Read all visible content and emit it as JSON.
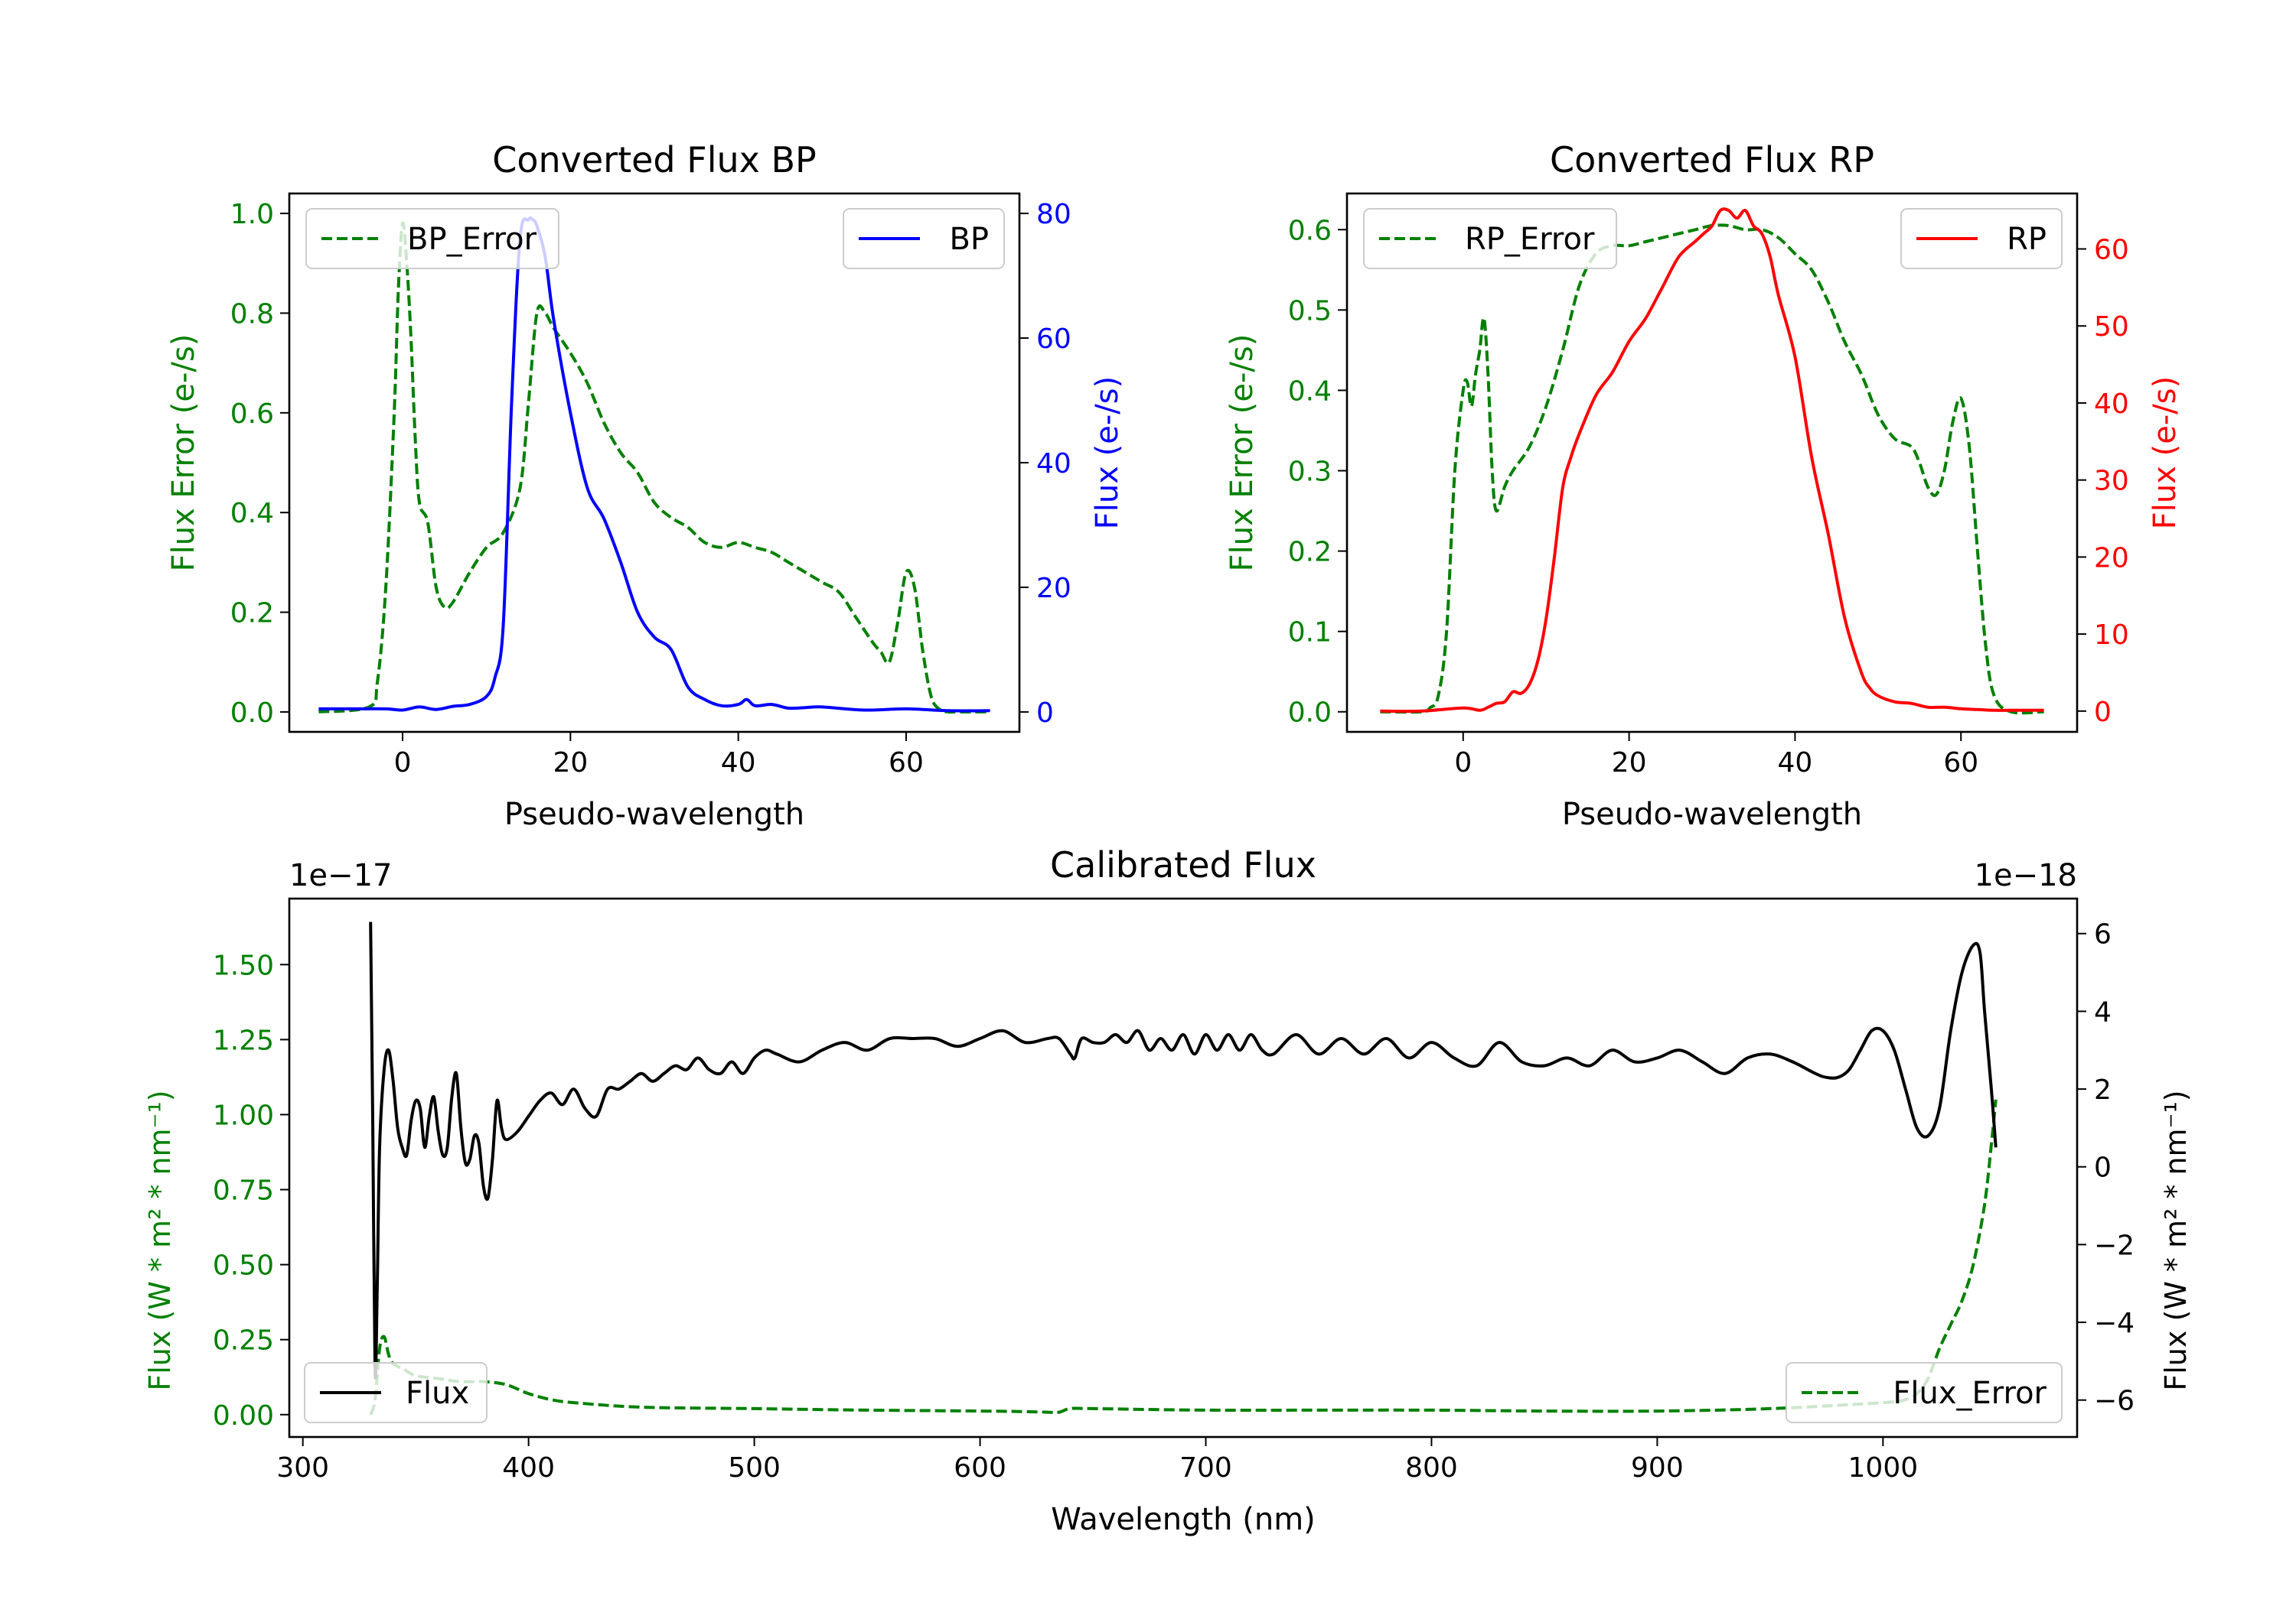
{
  "chart_data": [
    {
      "type": "line",
      "title": "Converted Flux BP",
      "xlabel": "Pseudo-wavelength",
      "ylabel_left": "Flux Error (e-/s)",
      "ylabel_right": "Flux (e-/s)",
      "xlim": [
        -13.5,
        73.5
      ],
      "ylim_left": [
        -0.04,
        1.04
      ],
      "ylim_right": [
        -3.2,
        83.2
      ],
      "xticks": [
        0,
        20,
        40,
        60
      ],
      "xtick_labels": [
        "0",
        "20",
        "40",
        "60"
      ],
      "yticks_left": [
        0.0,
        0.2,
        0.4,
        0.6,
        0.8,
        1.0
      ],
      "ytick_labels_left": [
        "0.0",
        "0.2",
        "0.4",
        "0.6",
        "0.8",
        "1.0"
      ],
      "yticks_right": [
        0,
        20,
        40,
        60,
        80
      ],
      "ytick_labels_right": [
        "0",
        "20",
        "40",
        "60",
        "80"
      ],
      "left_color": "#008000",
      "right_color": "#0000ff",
      "series": [
        {
          "name": "BP_Error",
          "axis": "left",
          "style": "dashed",
          "color": "#008000",
          "legend": "upper left",
          "x": [
            -10,
            -4,
            -3,
            -2,
            -1,
            -0.5,
            0,
            0.5,
            1,
            1.5,
            2,
            3,
            4,
            5,
            6,
            8,
            10,
            12,
            14,
            15,
            16,
            17,
            18,
            20,
            22,
            24,
            26,
            28,
            30,
            32,
            34,
            36,
            38,
            40,
            42,
            44,
            46,
            48,
            50,
            52,
            54,
            56,
            57,
            58,
            59,
            60,
            61,
            62,
            63,
            64,
            65,
            66,
            68,
            70
          ],
          "y": [
            0.0,
            0.01,
            0.06,
            0.25,
            0.6,
            0.85,
            0.98,
            0.9,
            0.75,
            0.55,
            0.42,
            0.38,
            0.25,
            0.21,
            0.22,
            0.28,
            0.33,
            0.36,
            0.45,
            0.62,
            0.8,
            0.8,
            0.77,
            0.72,
            0.66,
            0.58,
            0.52,
            0.48,
            0.42,
            0.39,
            0.37,
            0.34,
            0.33,
            0.34,
            0.33,
            0.32,
            0.3,
            0.28,
            0.26,
            0.24,
            0.19,
            0.14,
            0.12,
            0.1,
            0.18,
            0.28,
            0.25,
            0.12,
            0.03,
            0.005,
            0.0,
            0.0,
            0.0,
            0.0
          ]
        },
        {
          "name": "BP",
          "axis": "right",
          "style": "solid",
          "color": "#0000ff",
          "legend": "upper right",
          "x": [
            -10,
            -6,
            -2,
            0,
            2,
            4,
            6,
            8,
            10,
            11,
            12,
            13,
            14,
            15,
            15.5,
            16,
            17,
            18,
            20,
            22,
            24,
            26,
            28,
            30,
            32,
            34,
            36,
            38,
            40,
            41,
            42,
            44,
            46,
            48,
            50,
            55,
            60,
            65,
            70
          ],
          "y": [
            0.5,
            0.5,
            0.5,
            0.3,
            0.8,
            0.4,
            0.9,
            1.2,
            2.5,
            5.5,
            14,
            50,
            76,
            79,
            79,
            78,
            73,
            63,
            48,
            36,
            31,
            24,
            16,
            12,
            10,
            4,
            2,
            1,
            1.2,
            2.0,
            1.0,
            1.2,
            0.6,
            0.7,
            0.8,
            0.3,
            0.5,
            0.2,
            0.2
          ]
        }
      ]
    },
    {
      "type": "line",
      "title": "Converted Flux RP",
      "xlabel": "Pseudo-wavelength",
      "ylabel_left": "Flux Error (e-/s)",
      "ylabel_right": "Flux (e-/s)",
      "xlim": [
        -14,
        74
      ],
      "ylim_left": [
        -0.025,
        0.645
      ],
      "ylim_right": [
        -2.7,
        67.2
      ],
      "xticks": [
        0,
        20,
        40,
        60
      ],
      "xtick_labels": [
        "0",
        "20",
        "40",
        "60"
      ],
      "yticks_left": [
        0.0,
        0.1,
        0.2,
        0.3,
        0.4,
        0.5,
        0.6
      ],
      "ytick_labels_left": [
        "0.0",
        "0.1",
        "0.2",
        "0.3",
        "0.4",
        "0.5",
        "0.6"
      ],
      "yticks_right": [
        0,
        10,
        20,
        30,
        40,
        50,
        60
      ],
      "ytick_labels_right": [
        "0",
        "10",
        "20",
        "30",
        "40",
        "50",
        "60"
      ],
      "left_color": "#008000",
      "right_color": "#ff0000",
      "series": [
        {
          "name": "RP_Error",
          "axis": "left",
          "style": "dashed",
          "color": "#008000",
          "legend": "upper left",
          "x": [
            -10,
            -5,
            -4,
            -3,
            -2,
            -1,
            0,
            0.5,
            1,
            1.5,
            2,
            2.5,
            3,
            3.5,
            4,
            5,
            6,
            8,
            10,
            12,
            14,
            16,
            18,
            20,
            22,
            24,
            26,
            28,
            30,
            32,
            34,
            36,
            38,
            40,
            42,
            44,
            46,
            48,
            50,
            52,
            54,
            55,
            56,
            57,
            58,
            59,
            60,
            61,
            62,
            63,
            64,
            66,
            70
          ],
          "y": [
            0.0,
            0.0,
            0.005,
            0.02,
            0.1,
            0.3,
            0.4,
            0.41,
            0.38,
            0.42,
            0.45,
            0.49,
            0.42,
            0.3,
            0.25,
            0.28,
            0.3,
            0.33,
            0.38,
            0.45,
            0.53,
            0.57,
            0.58,
            0.58,
            0.585,
            0.59,
            0.595,
            0.6,
            0.605,
            0.605,
            0.6,
            0.6,
            0.59,
            0.57,
            0.55,
            0.51,
            0.46,
            0.42,
            0.37,
            0.34,
            0.33,
            0.31,
            0.28,
            0.27,
            0.3,
            0.36,
            0.39,
            0.33,
            0.2,
            0.08,
            0.02,
            0.0,
            0.0
          ]
        },
        {
          "name": "RP",
          "axis": "right",
          "style": "solid",
          "color": "#ff0000",
          "legend": "upper right",
          "x": [
            -10,
            -5,
            0,
            2,
            3,
            4,
            5,
            6,
            7,
            8,
            9,
            10,
            11,
            12,
            13,
            14,
            16,
            18,
            20,
            22,
            24,
            26,
            28,
            29,
            30,
            31,
            32,
            33,
            34,
            35,
            36,
            37,
            38,
            40,
            42,
            44,
            46,
            48,
            49,
            50,
            52,
            54,
            56,
            58,
            60,
            62,
            64,
            66,
            70
          ],
          "y": [
            0,
            0,
            0.4,
            0.1,
            0.5,
            1.0,
            1.2,
            2.5,
            2.3,
            3.5,
            6.5,
            12,
            20,
            29,
            33,
            36,
            41,
            44,
            48,
            51,
            55,
            59,
            61,
            62,
            63,
            65,
            65,
            64,
            65,
            63,
            62,
            59,
            54,
            46,
            33,
            23,
            12,
            5,
            3,
            2,
            1.2,
            1.0,
            0.5,
            0.5,
            0.3,
            0.2,
            0.1,
            0.1,
            0.1
          ]
        }
      ]
    },
    {
      "type": "line",
      "title": "Calibrated Flux",
      "xlabel": "Wavelength (nm)",
      "ylabel_left": "Flux (W * m² * nm⁻¹)",
      "ylabel_right": "Flux (W * m² * nm⁻¹)",
      "offset_left": "1e−17",
      "offset_right": "1e−18",
      "xlim": [
        294,
        1086
      ],
      "ylim_left": [
        -0.0745,
        1.72
      ],
      "ylim_right": [
        -6.95,
        6.9
      ],
      "xticks": [
        300,
        400,
        500,
        600,
        700,
        800,
        900,
        1000
      ],
      "xtick_labels": [
        "300",
        "400",
        "500",
        "600",
        "700",
        "800",
        "900",
        "1000"
      ],
      "yticks_left": [
        0.0,
        0.25,
        0.5,
        0.75,
        1.0,
        1.25,
        1.5
      ],
      "ytick_labels_left": [
        "0.00",
        "0.25",
        "0.50",
        "0.75",
        "1.00",
        "1.25",
        "1.50"
      ],
      "yticks_right": [
        -6,
        -4,
        -2,
        0,
        2,
        4,
        6
      ],
      "ytick_labels_right": [
        "−6",
        "−4",
        "−2",
        "0",
        "2",
        "4",
        "6"
      ],
      "left_color": "#008000",
      "right_color": "#000000",
      "series": [
        {
          "name": "Flux",
          "axis": "right",
          "style": "solid",
          "color": "#000000",
          "legend": "lower left",
          "x": [
            330,
            331,
            332,
            333,
            334,
            336,
            338,
            340,
            342,
            344,
            346,
            348,
            350,
            352,
            354,
            356,
            358,
            360,
            362,
            364,
            366,
            368,
            370,
            372,
            374,
            376,
            378,
            380,
            382,
            384,
            386,
            388,
            390,
            395,
            400,
            405,
            410,
            415,
            420,
            425,
            430,
            435,
            440,
            445,
            450,
            455,
            460,
            465,
            470,
            475,
            480,
            485,
            490,
            495,
            500,
            505,
            510,
            520,
            530,
            540,
            550,
            560,
            570,
            580,
            590,
            600,
            610,
            620,
            630,
            635,
            640,
            642,
            645,
            650,
            655,
            660,
            665,
            670,
            675,
            680,
            685,
            690,
            695,
            700,
            705,
            710,
            715,
            720,
            725,
            730,
            740,
            750,
            760,
            770,
            780,
            790,
            800,
            810,
            820,
            830,
            840,
            850,
            860,
            870,
            880,
            890,
            900,
            910,
            920,
            930,
            940,
            950,
            960,
            970,
            975,
            980,
            985,
            990,
            995,
            1000,
            1005,
            1010,
            1015,
            1020,
            1025,
            1030,
            1035,
            1040,
            1043,
            1045,
            1048,
            1050
          ],
          "y": [
            6.3,
            1.0,
            -5.3,
            -3.0,
            0.5,
            2.5,
            3.0,
            2.2,
            1.0,
            0.5,
            0.3,
            1.2,
            1.7,
            1.5,
            0.5,
            1.3,
            1.8,
            0.9,
            0.3,
            0.5,
            1.8,
            2.4,
            1.0,
            0.1,
            0.2,
            0.8,
            0.6,
            -0.5,
            -0.8,
            0.2,
            1.7,
            1.0,
            0.7,
            0.9,
            1.3,
            1.7,
            1.9,
            1.6,
            2.0,
            1.5,
            1.3,
            2.0,
            2.0,
            2.2,
            2.4,
            2.2,
            2.4,
            2.6,
            2.5,
            2.8,
            2.5,
            2.4,
            2.7,
            2.4,
            2.8,
            3.0,
            2.9,
            2.7,
            3.0,
            3.2,
            3.0,
            3.3,
            3.3,
            3.3,
            3.1,
            3.3,
            3.5,
            3.2,
            3.3,
            3.3,
            2.9,
            2.8,
            3.3,
            3.2,
            3.2,
            3.4,
            3.2,
            3.5,
            3.0,
            3.3,
            3.0,
            3.4,
            2.9,
            3.4,
            3.0,
            3.4,
            3.0,
            3.4,
            3.0,
            2.9,
            3.4,
            2.9,
            3.3,
            2.9,
            3.3,
            2.8,
            3.2,
            2.8,
            2.6,
            3.2,
            2.7,
            2.6,
            2.8,
            2.6,
            3.0,
            2.7,
            2.8,
            3.0,
            2.7,
            2.4,
            2.8,
            2.9,
            2.7,
            2.4,
            2.3,
            2.3,
            2.5,
            3.0,
            3.5,
            3.5,
            3.0,
            2.0,
            1.0,
            0.8,
            1.5,
            3.5,
            5.0,
            5.7,
            5.5,
            4.0,
            2.0,
            0.5
          ]
        },
        {
          "name": "Flux_Error",
          "axis": "left",
          "style": "dashed",
          "color": "#008000",
          "legend": "lower right",
          "x": [
            330,
            332,
            334,
            336,
            338,
            340,
            345,
            350,
            360,
            370,
            380,
            390,
            400,
            410,
            420,
            450,
            500,
            550,
            600,
            620,
            630,
            635,
            640,
            650,
            700,
            750,
            800,
            850,
            900,
            950,
            1000,
            1010,
            1015,
            1020,
            1025,
            1030,
            1035,
            1040,
            1045,
            1048,
            1050
          ],
          "y": [
            0.0,
            0.05,
            0.22,
            0.26,
            0.2,
            0.17,
            0.15,
            0.13,
            0.12,
            0.11,
            0.11,
            0.1,
            0.07,
            0.05,
            0.04,
            0.025,
            0.02,
            0.015,
            0.012,
            0.01,
            0.008,
            0.008,
            0.02,
            0.02,
            0.015,
            0.015,
            0.015,
            0.012,
            0.012,
            0.02,
            0.04,
            0.05,
            0.07,
            0.12,
            0.22,
            0.3,
            0.38,
            0.5,
            0.7,
            0.9,
            1.05
          ]
        }
      ]
    }
  ]
}
